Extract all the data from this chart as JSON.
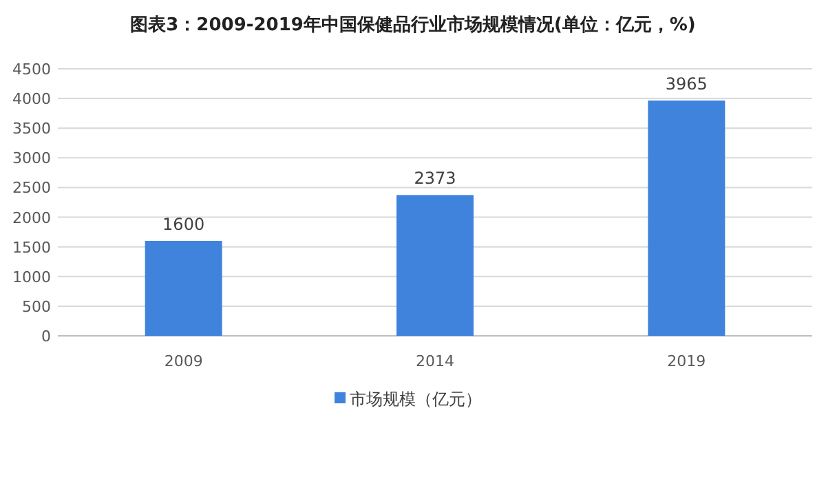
{
  "chart_data": {
    "type": "bar",
    "title": "图表3：2009-2019年中国保健品行业市场规模情况(单位：亿元，%)",
    "categories": [
      "2009",
      "2014",
      "2019"
    ],
    "series": [
      {
        "name": "市场规模（亿元）",
        "color": "#3f83dd",
        "values": [
          1600,
          2373,
          3965
        ]
      }
    ],
    "ylim": [
      0,
      4500
    ],
    "yticks": [
      0,
      500,
      1000,
      1500,
      2000,
      2500,
      3000,
      3500,
      4000,
      4500
    ],
    "grid": "y",
    "legend": "bottom",
    "data_labels": true
  }
}
